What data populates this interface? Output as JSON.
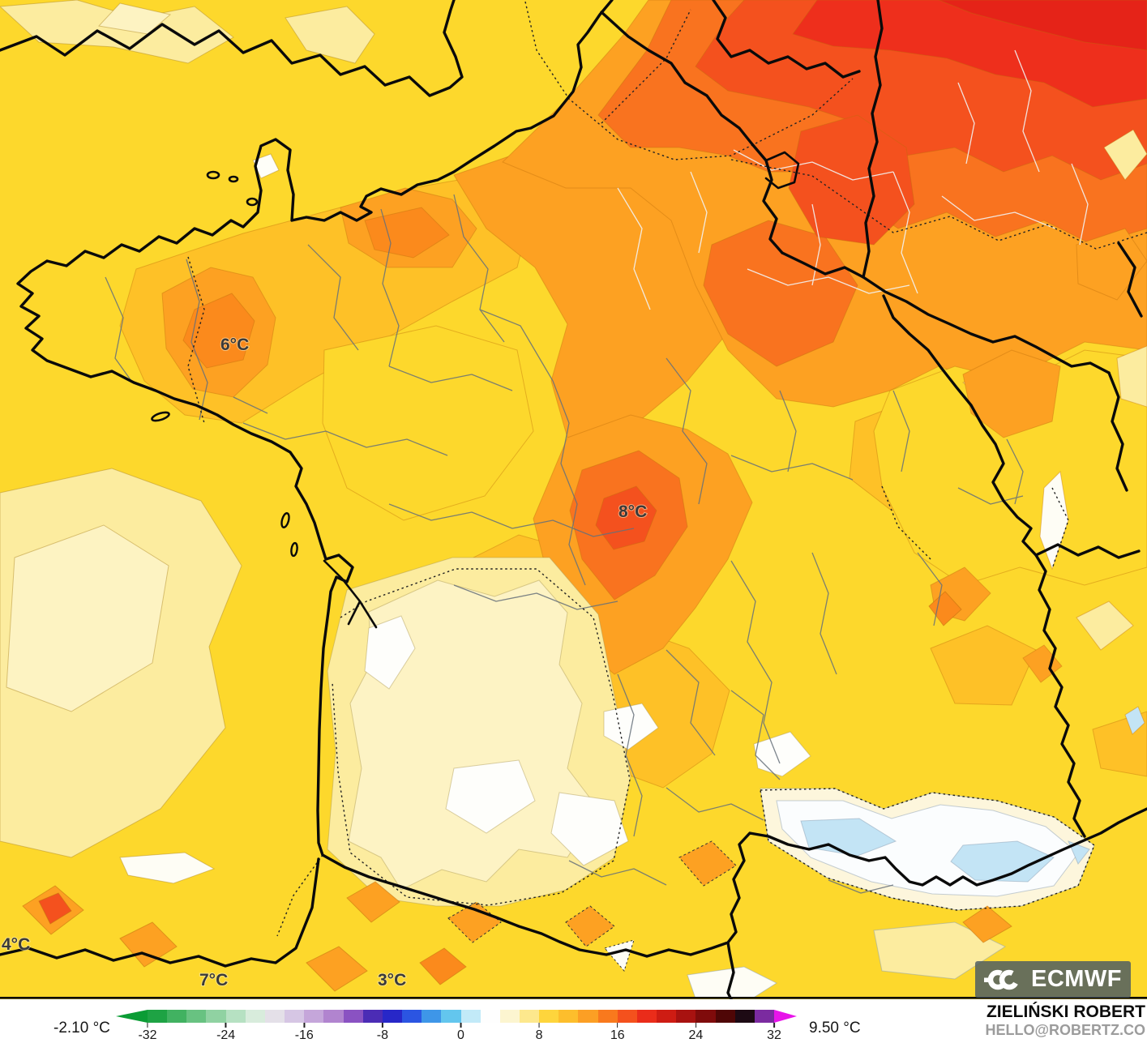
{
  "map": {
    "description": "ECMWF 2m temperature contour map of France and neighbouring countries",
    "region_labels": [
      {
        "text": "6°C"
      },
      {
        "text": "8°C"
      },
      {
        "text": "4°C"
      },
      {
        "text": "7°C"
      },
      {
        "text": "3°C"
      }
    ],
    "logo_text": "ECMWF",
    "palette": {
      "base_yellow": "#FDD82C",
      "pale_yellow": "#FCEC9F",
      "cream": "#FDF3C4",
      "white_cold": "#FEFEFB",
      "light_blue": "#C3E4F5",
      "yellow_orange": "#FEC127",
      "orange": "#FDA122",
      "deep_orange": "#FB8A1C",
      "strong_orange": "#F9731F",
      "red_orange": "#F4511E",
      "red": "#EE2F1C",
      "dark_red": "#E52318"
    }
  },
  "legend": {
    "min_label": "-2.10 °C",
    "max_label": "9.50 °C",
    "unit": "°C",
    "range": [
      -32,
      32
    ],
    "ticks": [
      {
        "label": "-32",
        "value": -32
      },
      {
        "label": "-24",
        "value": -24
      },
      {
        "label": "-16",
        "value": -16
      },
      {
        "label": "-8",
        "value": -8
      },
      {
        "label": "0",
        "value": 0
      },
      {
        "label": "8",
        "value": 8
      },
      {
        "label": "16",
        "value": 16
      },
      {
        "label": "24",
        "value": 24
      },
      {
        "label": "32",
        "value": 32
      }
    ],
    "segments": [
      "#1EA344",
      "#41B261",
      "#68C281",
      "#90D2A2",
      "#B6E1C2",
      "#D8ECDC",
      "#E4E0E8",
      "#D6C6E4",
      "#C5A6DA",
      "#B184CF",
      "#8A52C2",
      "#4B2CB5",
      "#2727C8",
      "#2B55E2",
      "#3E96E8",
      "#63C6EE",
      "#C2EAF8",
      "#FEFEFE",
      "#FCF5D0",
      "#FDE88D",
      "#FED53C",
      "#FDBE2C",
      "#FC9F24",
      "#F9791D",
      "#F4511D",
      "#EA2C1A",
      "#CE1C13",
      "#A81210",
      "#7F0B0B",
      "#4F0606",
      "#1D0A14",
      "#7B2BA0"
    ],
    "arrow_left_color": "#0B9C35",
    "arrow_right_color": "#E714E9"
  },
  "credit": {
    "name": "ZIELIŃSKI ROBERT",
    "contact": "HELLO@ROBERTZ.CO"
  }
}
